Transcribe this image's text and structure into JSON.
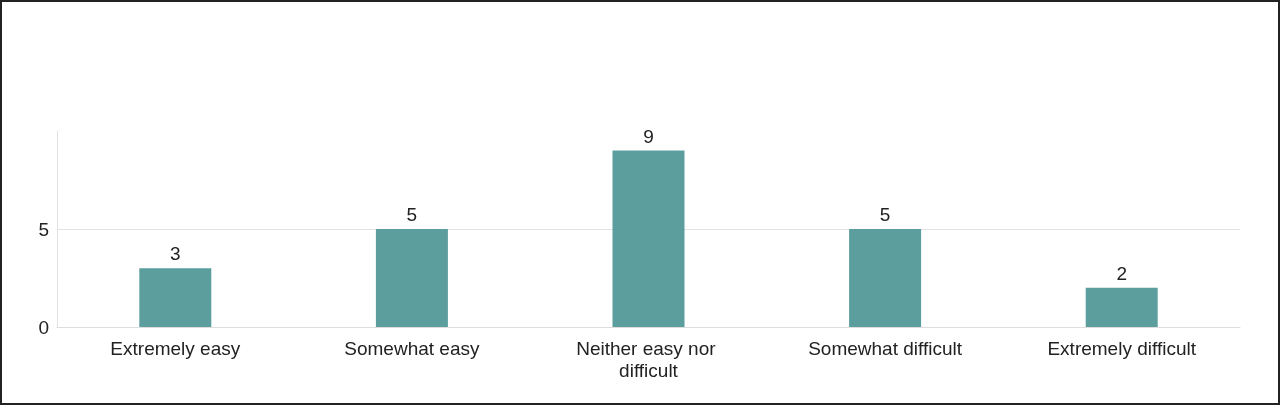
{
  "chart_data": {
    "type": "bar",
    "categories": [
      "Extremely easy",
      "Somewhat easy",
      "Neither easy nor difficult",
      "Somewhat difficult",
      "Extremely difficult"
    ],
    "values": [
      3,
      5,
      9,
      5,
      2
    ],
    "color": "#5b9e9d",
    "ylim": [
      0,
      10
    ],
    "yticks": [
      0,
      5
    ],
    "grid": "y",
    "data_labels": true
  }
}
